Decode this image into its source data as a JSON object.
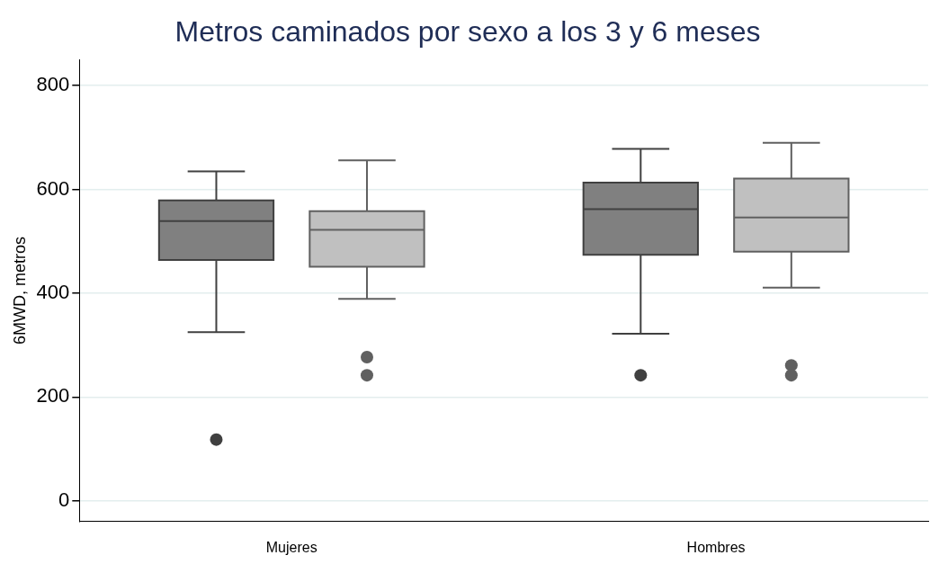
{
  "chart_data": {
    "type": "box",
    "title": "Metros caminados por sexo a los 3 y 6 meses",
    "ylabel": "6MWD, metros",
    "categories": [
      "Mujeres",
      "Hombres"
    ],
    "ylim": [
      -40,
      850
    ],
    "yticks": [
      0,
      200,
      400,
      600,
      800
    ],
    "grid": "y",
    "legend": false,
    "series": [
      {
        "color": "#808080",
        "boxes": [
          {
            "low": 325,
            "q1": 464,
            "median": 539,
            "q3": 579,
            "high": 635,
            "outliers": [
              118
            ]
          },
          {
            "low": 322,
            "q1": 474,
            "median": 562,
            "q3": 613,
            "high": 678,
            "outliers": [
              242
            ]
          }
        ]
      },
      {
        "color": "#c0c0c0",
        "boxes": [
          {
            "low": 389,
            "q1": 451,
            "median": 522,
            "q3": 558,
            "high": 656,
            "outliers": [
              277,
              242
            ]
          },
          {
            "low": 411,
            "q1": 480,
            "median": 546,
            "q3": 621,
            "high": 690,
            "outliers": [
              261,
              242
            ]
          }
        ]
      }
    ]
  }
}
